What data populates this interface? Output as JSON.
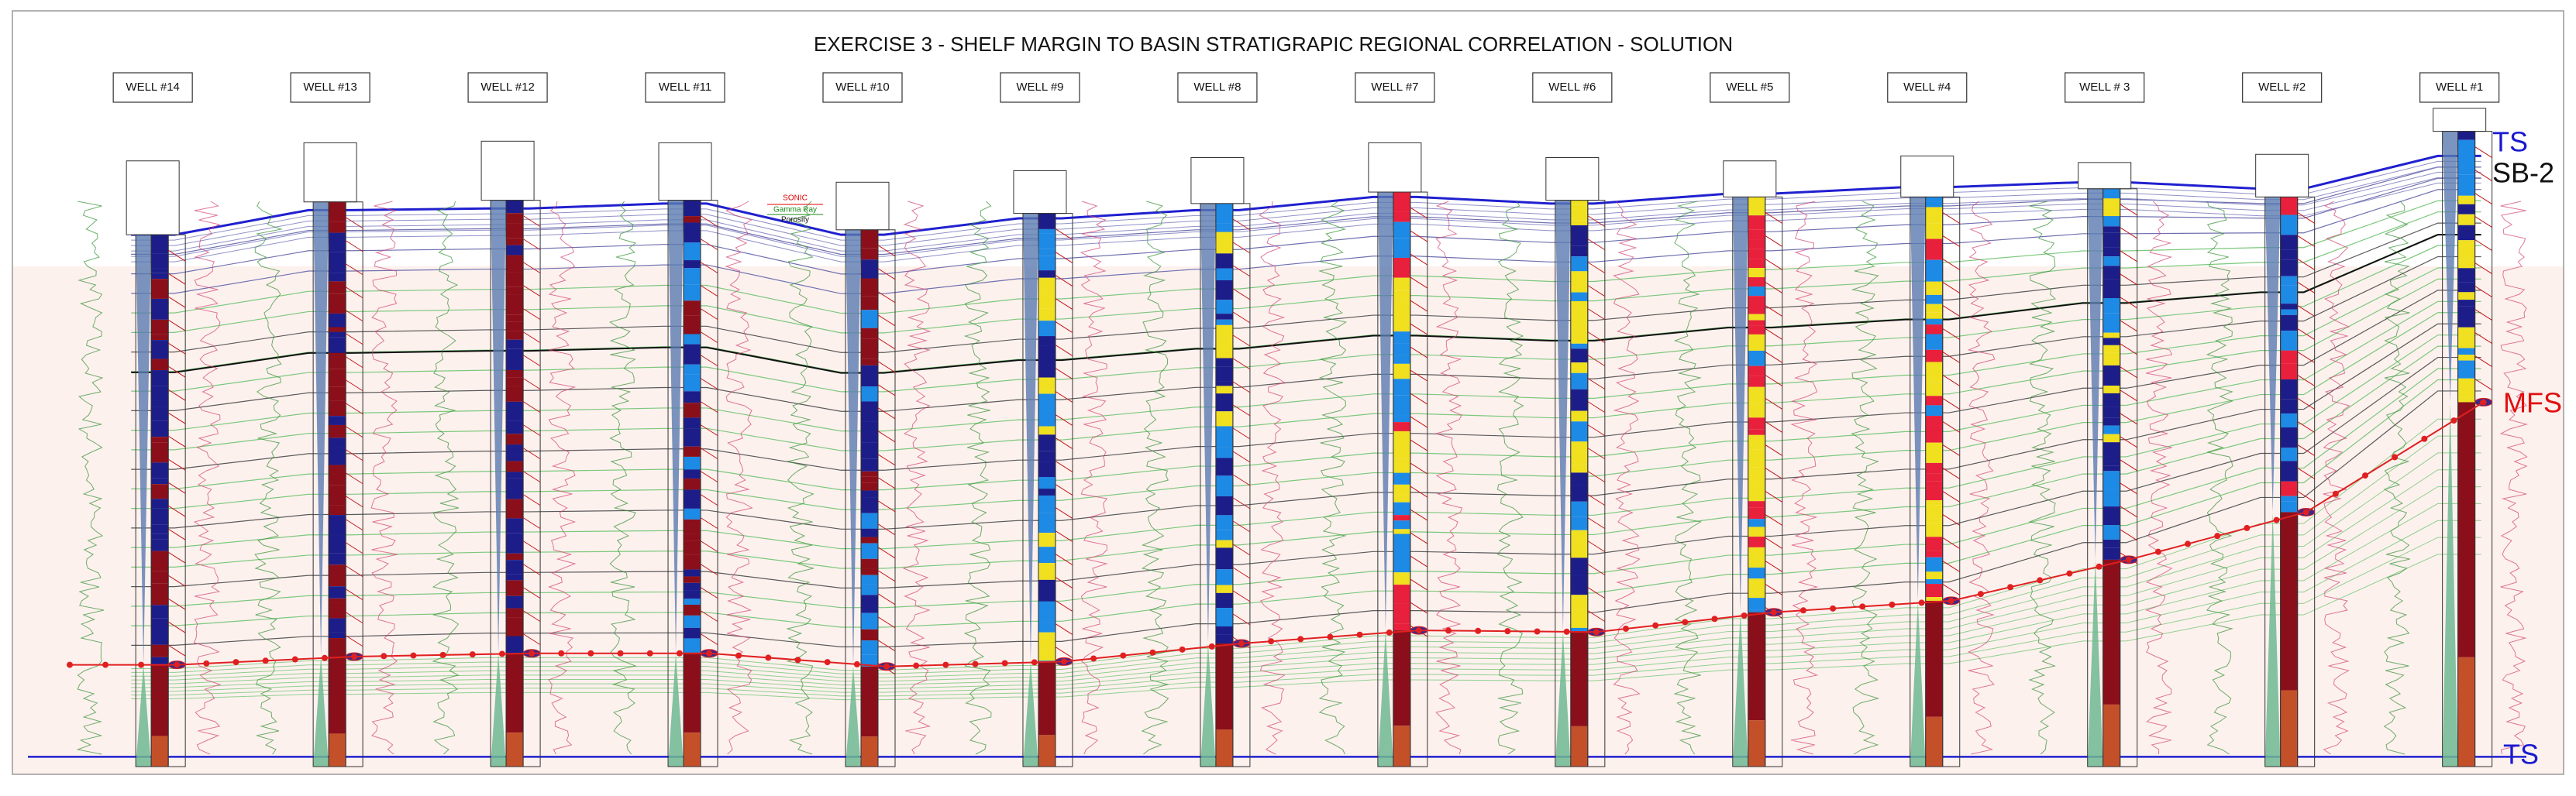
{
  "title": "EXERCISE 3 - SHELF MARGIN TO BASIN STRATIGRAPIC REGIONAL CORRELATION - SOLUTION",
  "wells": [
    "WELL #14",
    "WELL #13",
    "WELL #12",
    "WELL #11",
    "WELL #10",
    "WELL #9",
    "WELL #8",
    "WELL #7",
    "WELL #6",
    "WELL #5",
    "WELL #4",
    "WELL # 3",
    "WELL #2",
    "WELL #1"
  ],
  "legend": {
    "sonic": "SONIC",
    "gamma": "Gamma Ray",
    "porosity": "Porosity"
  },
  "surfaces": {
    "ts_top": "TS",
    "sb2": "SB-2",
    "mfs": "MFS",
    "ts_base": "TS"
  }
}
